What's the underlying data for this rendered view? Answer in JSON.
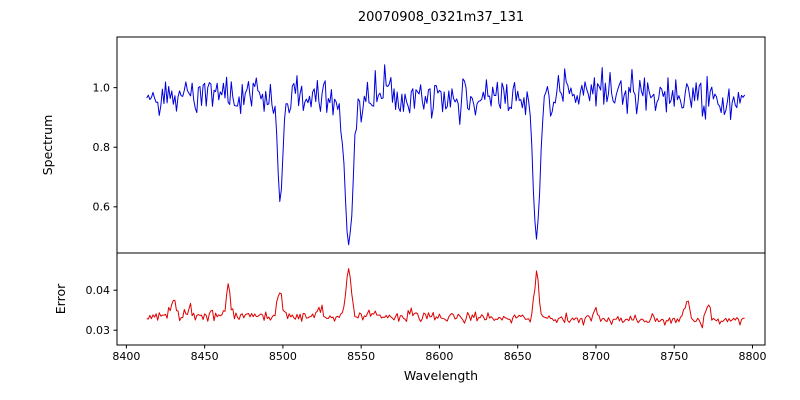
{
  "chart_data": {
    "type": "line",
    "title": "20070908_0321m37_131",
    "xlabel": "Wavelength",
    "xlim": [
      8394,
      8808
    ],
    "xticks": [
      8400,
      8450,
      8500,
      8550,
      8600,
      8650,
      8700,
      8750,
      8800
    ],
    "x_start": 8413,
    "x_end": 8795,
    "x_step": 1,
    "seed": 20070908,
    "grid": false,
    "legend": "none",
    "panels": [
      {
        "name": "spectrum",
        "ylabel": "Spectrum",
        "color": "#0000dd",
        "ylim": [
          0.445,
          1.17
        ],
        "yticks": [
          {
            "value": 0.6,
            "label": "0.6"
          },
          {
            "value": 0.8,
            "label": "0.8"
          },
          {
            "value": 1.0,
            "label": "1.0"
          }
        ],
        "continuum": 0.975,
        "noise_sigma": 0.033,
        "absorption_lines": [
          {
            "center": 8498.0,
            "depth": 0.31,
            "sigma": 1.6
          },
          {
            "center": 8498.0,
            "depth": 0.03,
            "sigma": 4.0
          },
          {
            "center": 8542.1,
            "depth": 0.42,
            "sigma": 2.3
          },
          {
            "center": 8542.1,
            "depth": 0.08,
            "sigma": 5.5
          },
          {
            "center": 8662.1,
            "depth": 0.44,
            "sigma": 2.0
          },
          {
            "center": 8662.1,
            "depth": 0.05,
            "sigma": 5.0
          }
        ]
      },
      {
        "name": "error",
        "ylabel": "Error",
        "color": "#dd0000",
        "ylim": [
          0.0263,
          0.0493
        ],
        "yticks": [
          {
            "value": 0.03,
            "label": "0.03"
          },
          {
            "value": 0.04,
            "label": "0.04"
          }
        ],
        "baseline": 0.0338,
        "slope_per_angstrom": -3.5e-06,
        "noise_sigma": 0.00065,
        "peaks": [
          {
            "center": 8430,
            "amplitude": 0.004,
            "sigma": 1.5
          },
          {
            "center": 8441,
            "amplitude": 0.0015,
            "sigma": 1.2
          },
          {
            "center": 8465,
            "amplitude": 0.0075,
            "sigma": 1.2
          },
          {
            "center": 8498,
            "amplitude": 0.006,
            "sigma": 1.5
          },
          {
            "center": 8523,
            "amplitude": 0.002,
            "sigma": 1.5
          },
          {
            "center": 8542,
            "amplitude": 0.0125,
            "sigma": 1.6
          },
          {
            "center": 8582,
            "amplitude": 0.0015,
            "sigma": 1.5
          },
          {
            "center": 8662,
            "amplitude": 0.012,
            "sigma": 1.4
          },
          {
            "center": 8700,
            "amplitude": 0.0015,
            "sigma": 1.5
          },
          {
            "center": 8758,
            "amplitude": 0.0045,
            "sigma": 1.5
          },
          {
            "center": 8772,
            "amplitude": 0.004,
            "sigma": 1.3
          }
        ]
      }
    ]
  }
}
